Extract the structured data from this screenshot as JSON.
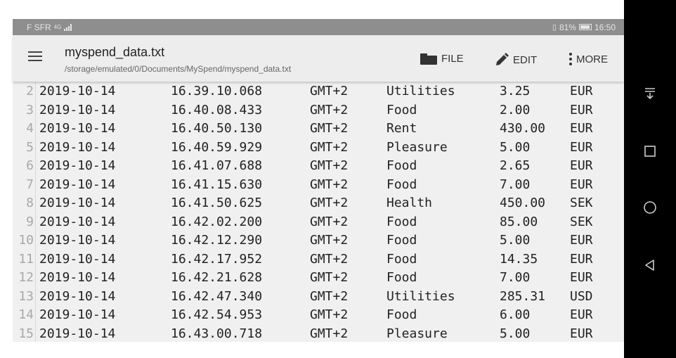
{
  "status_bar": {
    "carrier": "F SFR",
    "network_type": "4G",
    "battery_percent": "81%",
    "time": "16:50"
  },
  "app_bar": {
    "title": "myspend_data.txt",
    "path": "/storage/emulated/0/Documents/MySpend/myspend_data.txt",
    "file_label": "FILE",
    "edit_label": "EDIT",
    "more_label": "MORE"
  },
  "lines": [
    {
      "num": "2",
      "date": "2019-10-14",
      "time": "16.39.10.068",
      "tz": "GMT+2",
      "category": "Utilities",
      "amount": "3.25",
      "currency": "EUR"
    },
    {
      "num": "3",
      "date": "2019-10-14",
      "time": "16.40.08.433",
      "tz": "GMT+2",
      "category": "Food",
      "amount": "2.00",
      "currency": "EUR"
    },
    {
      "num": "4",
      "date": "2019-10-14",
      "time": "16.40.50.130",
      "tz": "GMT+2",
      "category": "Rent",
      "amount": "430.00",
      "currency": "EUR"
    },
    {
      "num": "5",
      "date": "2019-10-14",
      "time": "16.40.59.929",
      "tz": "GMT+2",
      "category": "Pleasure",
      "amount": "5.00",
      "currency": "EUR"
    },
    {
      "num": "6",
      "date": "2019-10-14",
      "time": "16.41.07.688",
      "tz": "GMT+2",
      "category": "Food",
      "amount": "2.65",
      "currency": "EUR"
    },
    {
      "num": "7",
      "date": "2019-10-14",
      "time": "16.41.15.630",
      "tz": "GMT+2",
      "category": "Food",
      "amount": "7.00",
      "currency": "EUR"
    },
    {
      "num": "8",
      "date": "2019-10-14",
      "time": "16.41.50.625",
      "tz": "GMT+2",
      "category": "Health",
      "amount": "450.00",
      "currency": "SEK"
    },
    {
      "num": "9",
      "date": "2019-10-14",
      "time": "16.42.02.200",
      "tz": "GMT+2",
      "category": "Food",
      "amount": "85.00",
      "currency": "SEK"
    },
    {
      "num": "10",
      "date": "2019-10-14",
      "time": "16.42.12.290",
      "tz": "GMT+2",
      "category": "Food",
      "amount": "5.00",
      "currency": "EUR"
    },
    {
      "num": "11",
      "date": "2019-10-14",
      "time": "16.42.17.952",
      "tz": "GMT+2",
      "category": "Food",
      "amount": "14.35",
      "currency": "EUR"
    },
    {
      "num": "12",
      "date": "2019-10-14",
      "time": "16.42.21.628",
      "tz": "GMT+2",
      "category": "Food",
      "amount": "7.00",
      "currency": "EUR"
    },
    {
      "num": "13",
      "date": "2019-10-14",
      "time": "16.42.47.340",
      "tz": "GMT+2",
      "category": "Utilities",
      "amount": "285.31",
      "currency": "USD"
    },
    {
      "num": "14",
      "date": "2019-10-14",
      "time": "16.42.54.953",
      "tz": "GMT+2",
      "category": "Food",
      "amount": "6.00",
      "currency": "EUR"
    },
    {
      "num": "15",
      "date": "2019-10-14",
      "time": "16.43.00.718",
      "tz": "GMT+2",
      "category": "Pleasure",
      "amount": "5.00",
      "currency": "EUR"
    }
  ],
  "nav_bar": {
    "icons": [
      "notification-pull-down-icon",
      "recent-apps-icon",
      "home-icon",
      "back-icon"
    ]
  }
}
